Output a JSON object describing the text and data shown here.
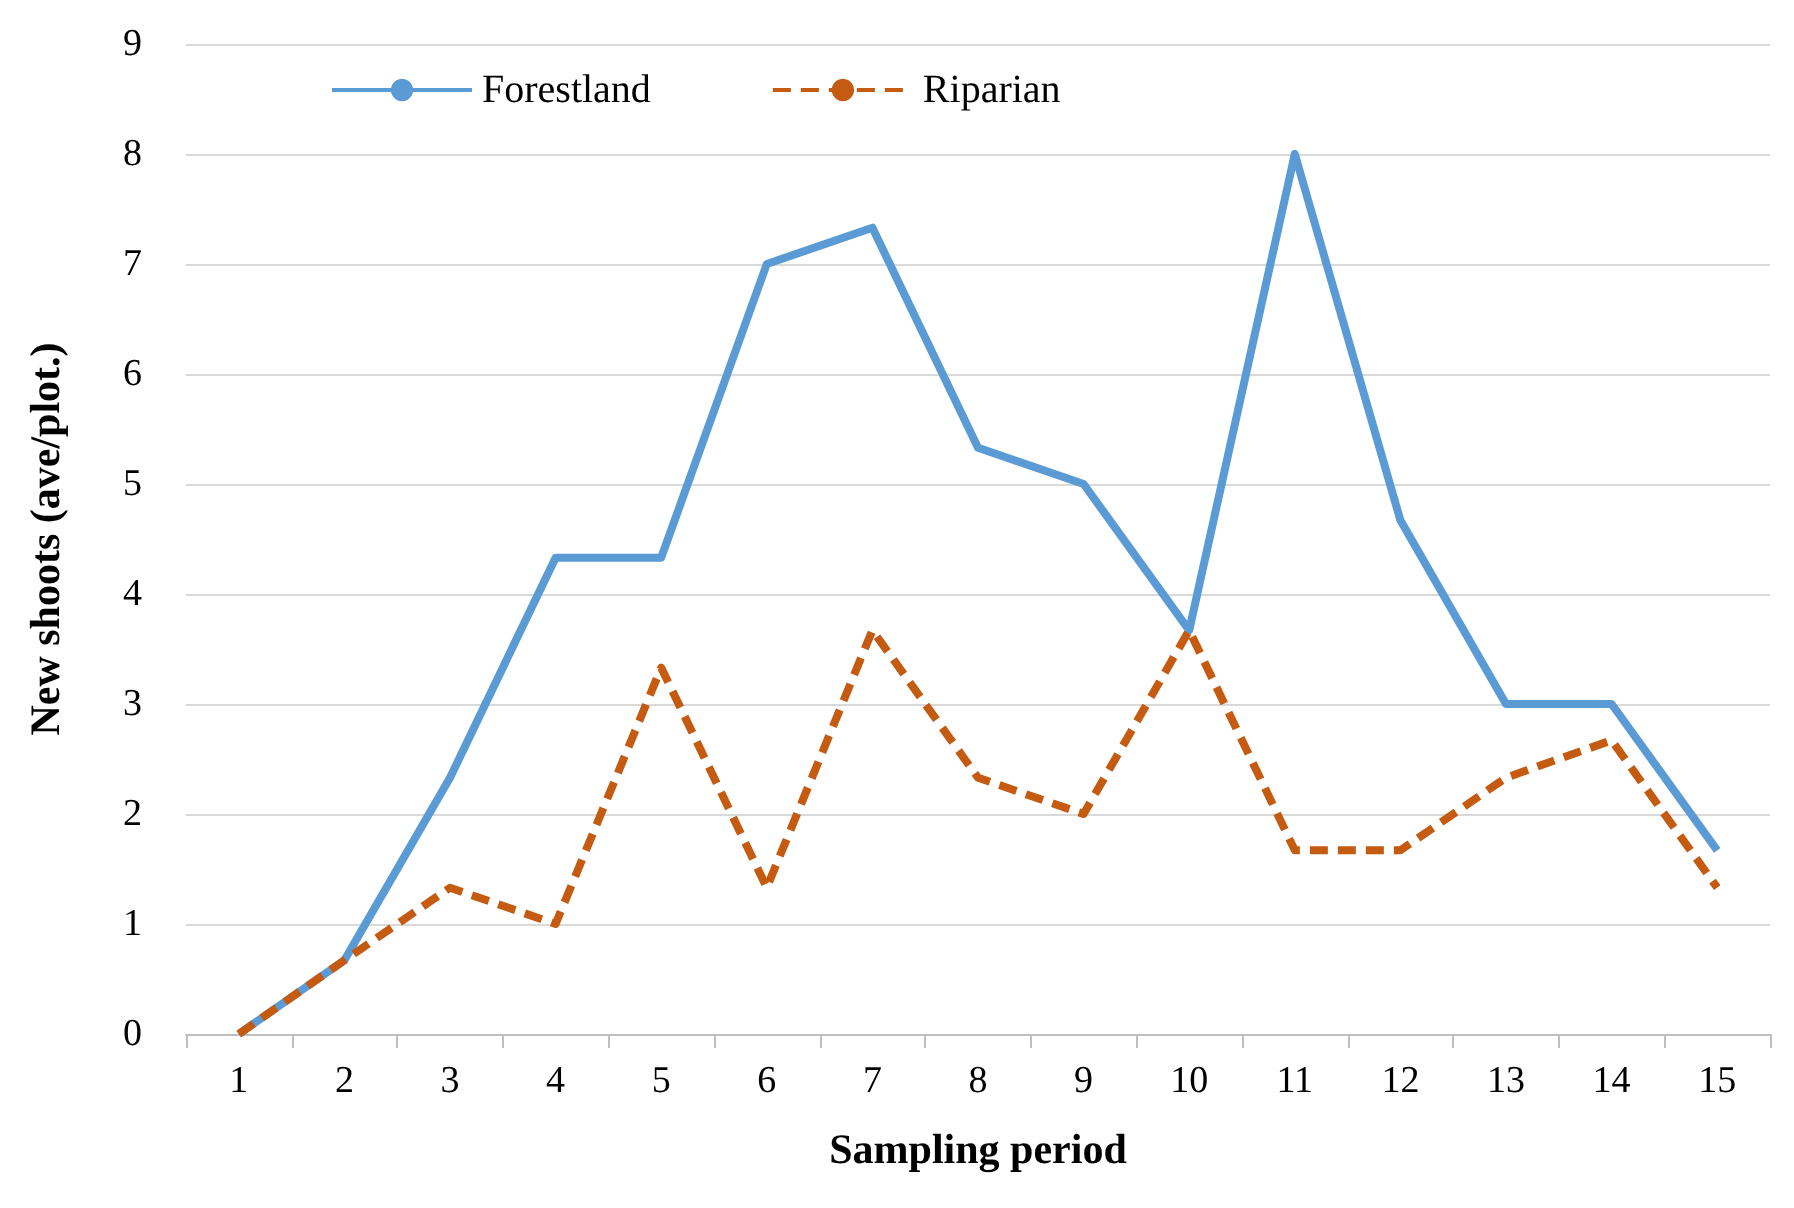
{
  "chart_data": {
    "type": "line",
    "xlabel": "Sampling period",
    "ylabel": "New shoots (ave/plot.)",
    "categories": [
      "1",
      "2",
      "3",
      "4",
      "5",
      "6",
      "7",
      "8",
      "9",
      "10",
      "11",
      "12",
      "13",
      "14",
      "15"
    ],
    "series": [
      {
        "name": "Forestland",
        "color": "#5b9bd5",
        "line_style": "solid",
        "values": [
          0,
          0.67,
          2.33,
          4.33,
          4.33,
          7,
          7.33,
          5.33,
          5,
          3.67,
          8,
          4.67,
          3,
          3,
          1.67
        ]
      },
      {
        "name": "Riparian",
        "color": "#c55a11",
        "line_style": "dashed",
        "values": [
          0,
          0.67,
          1.33,
          1,
          3.33,
          1.33,
          3.67,
          2.33,
          2,
          3.67,
          1.67,
          1.67,
          2.33,
          2.67,
          1.33
        ]
      }
    ],
    "ylim": [
      0,
      9
    ],
    "yticks": [
      0,
      1,
      2,
      3,
      4,
      5,
      6,
      7,
      8,
      9
    ],
    "grid": "y",
    "legend": "top left",
    "marker": "none"
  }
}
